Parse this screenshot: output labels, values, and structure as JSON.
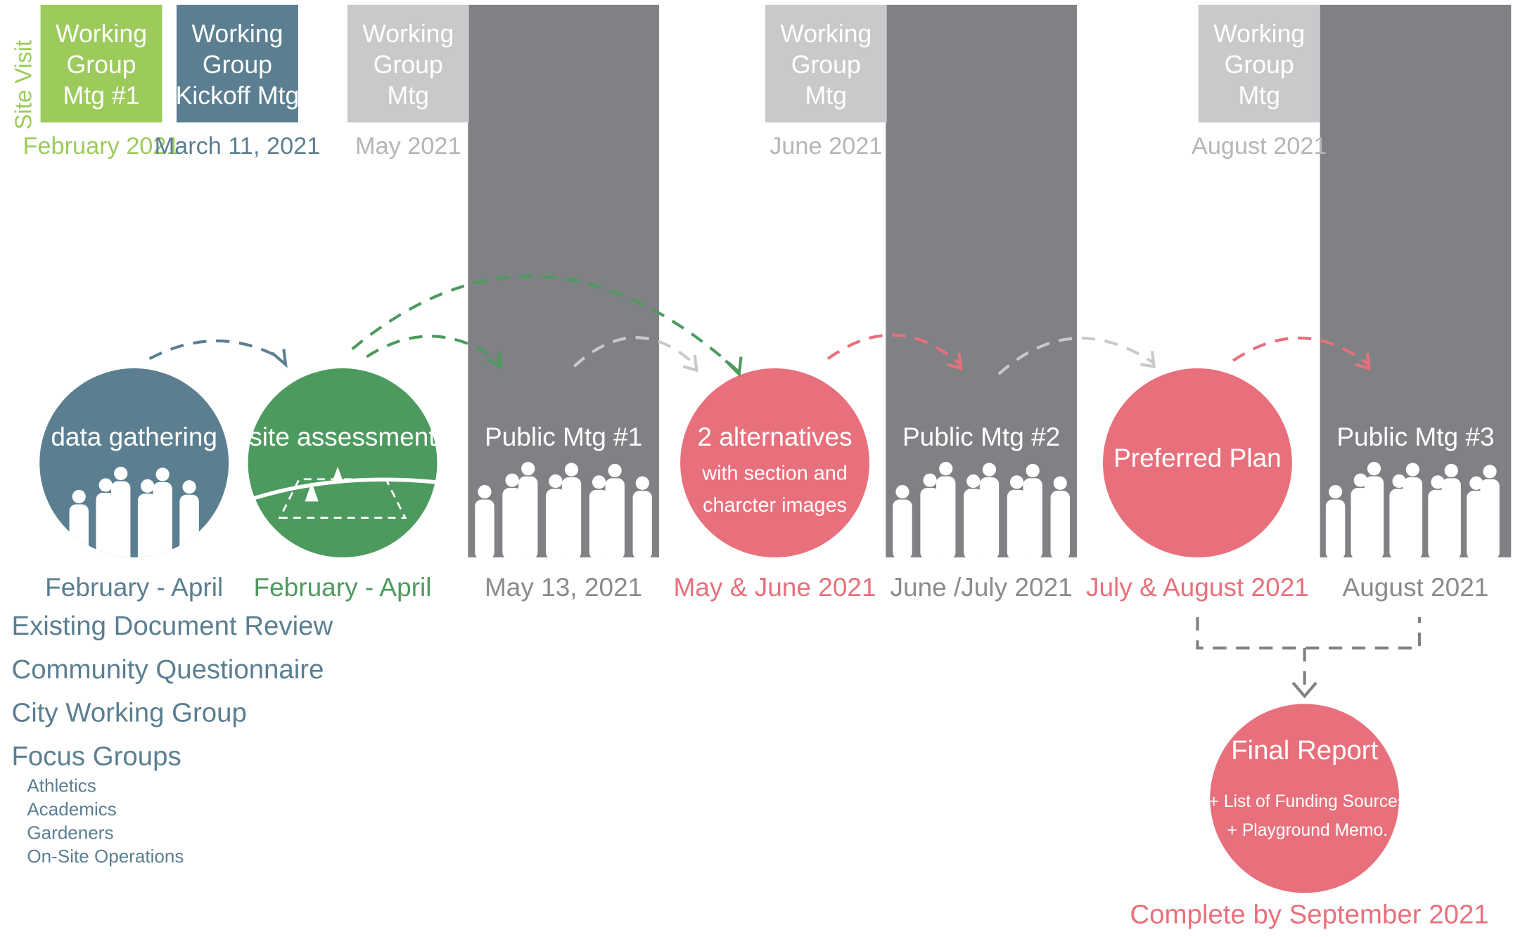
{
  "site_visit": "Site Visit",
  "top_meetings": [
    {
      "lines": [
        "Working",
        "Group",
        "Mtg #1"
      ],
      "date": "February 2021"
    },
    {
      "lines": [
        "Working",
        "Group",
        "Kickoff Mtg"
      ],
      "date": "March 11, 2021"
    },
    {
      "lines": [
        "Working",
        "Group",
        "Mtg"
      ],
      "date": "May 2021"
    },
    {
      "lines": [
        "Working",
        "Group",
        "Mtg"
      ],
      "date": "June 2021"
    },
    {
      "lines": [
        "Working",
        "Group",
        "Mtg"
      ],
      "date": "August 2021"
    }
  ],
  "phases": [
    {
      "title": "data gathering",
      "date": "February - April"
    },
    {
      "title": "site assessment",
      "date": "February  - April"
    },
    {
      "title": "2 alternatives",
      "details": [
        "with section and",
        "charcter images"
      ],
      "date": "May & June  2021"
    },
    {
      "title": "Preferred Plan",
      "date": "July & August 2021"
    }
  ],
  "public_meetings": [
    {
      "title": "Public Mtg #1",
      "date": "May 13, 2021"
    },
    {
      "title": "Public Mtg #2",
      "date": "June /July 2021"
    },
    {
      "title": "Public Mtg #3",
      "date": "August 2021"
    }
  ],
  "tasks": [
    "Existing Document Review",
    "Community Questionnaire",
    "City Working Group",
    "Focus Groups"
  ],
  "focus_groups": [
    "Athletics",
    "Academics",
    "Gardeners",
    "On-Site Operations"
  ],
  "final_report": {
    "title": "Final Report",
    "details": [
      "+ List of Funding Sources",
      "+ Playground Memo."
    ],
    "date": "Complete by September 2021"
  }
}
